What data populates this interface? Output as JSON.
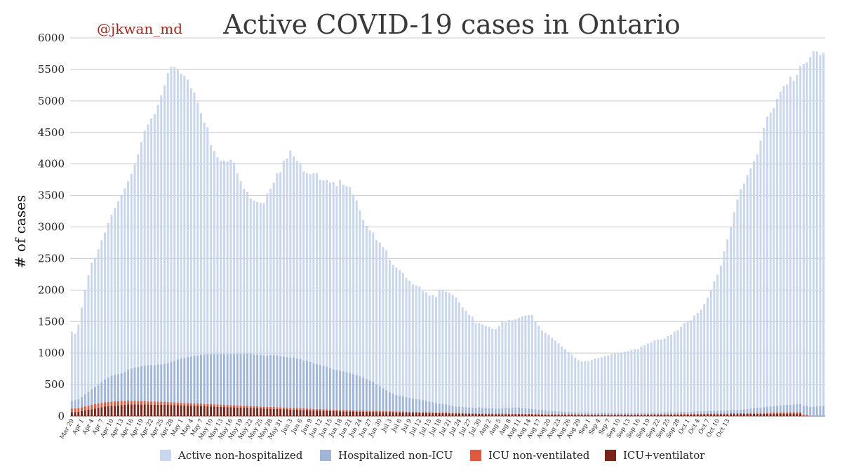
{
  "chart_data": {
    "type": "bar",
    "stacked": true,
    "title": "Active COVID-19 cases in Ontario",
    "handle": "@jkwan_md",
    "ylabel": "# of cases",
    "xlabel": "",
    "ylim": [
      0,
      6000
    ],
    "yticks": [
      0,
      500,
      1000,
      1500,
      2000,
      2500,
      3000,
      3500,
      4000,
      4500,
      5000,
      5500,
      6000
    ],
    "grid": true,
    "legend_position": "bottom",
    "start_date": "Mar 29",
    "tick_labels": [
      "Mar 29",
      "Apr 1",
      "Apr 4",
      "Apr 7",
      "Apr 10",
      "Apr 13",
      "Apr 16",
      "Apr 19",
      "Apr 22",
      "Apr 25",
      "Apr 28",
      "May 1",
      "May 4",
      "May 7",
      "May 10",
      "May 13",
      "May 16",
      "May 19",
      "May 22",
      "May 25",
      "May 28",
      "May 31",
      "Jun 3",
      "Jun 6",
      "Jun 9",
      "Jun 12",
      "Jun 15",
      "Jun 18",
      "Jun 21",
      "Jun 24",
      "Jun 27",
      "Jun 30",
      "Jul 3",
      "Jul 6",
      "Jul 9",
      "Jul 12",
      "Jul 15",
      "Jul 18",
      "Jul 21",
      "Jul 24",
      "Jul 27",
      "Jul 30",
      "Aug 2",
      "Aug 5",
      "Aug 8",
      "Aug 11",
      "Aug 14",
      "Aug 17",
      "Aug 20",
      "Aug 23",
      "Aug 26",
      "Aug 29",
      "Sep 1",
      "Sep 4",
      "Sep 7",
      "Sep 10",
      "Sep 13",
      "Sep 16",
      "Sep 19",
      "Sep 22",
      "Sep 25",
      "Sep 28",
      "Oct 1",
      "Oct 4",
      "Oct 7",
      "Oct 10",
      "Oct 13"
    ],
    "series": [
      {
        "name": "Active non-hospitalized",
        "color": "#c9d7ee",
        "values": [
          1100,
          1050,
          1180,
          1420,
          1650,
          1850,
          2000,
          2050,
          2150,
          2250,
          2330,
          2450,
          2550,
          2650,
          2740,
          2830,
          2910,
          2990,
          3090,
          3220,
          3370,
          3560,
          3730,
          3820,
          3910,
          3980,
          4120,
          4270,
          4420,
          4600,
          4680,
          4660,
          4600,
          4520,
          4480,
          4400,
          4260,
          4180,
          4010,
          3840,
          3680,
          3600,
          3320,
          3220,
          3120,
          3060,
          3060,
          3050,
          3080,
          3040,
          2860,
          2740,
          2620,
          2560,
          2460,
          2440,
          2420,
          2410,
          2420,
          2580,
          2640,
          2740,
          2890,
          2920,
          3100,
          3150,
          3280,
          3190,
          3130,
          3090,
          3000,
          2970,
          2980,
          3020,
          3030,
          2940,
          2940,
          2960,
          2940,
          2970,
          2920,
          3030,
          2960,
          2950,
          2950,
          2850,
          2770,
          2630,
          2500,
          2430,
          2380,
          2370,
          2290,
          2280,
          2240,
          2220,
          2100,
          2040,
          2020,
          1990,
          1960,
          1890,
          1860,
          1810,
          1810,
          1790,
          1730,
          1720,
          1680,
          1700,
          1680,
          1810,
          1810,
          1790,
          1780,
          1760,
          1730,
          1650,
          1580,
          1530,
          1470,
          1440,
          1340,
          1340,
          1320,
          1300,
          1290,
          1260,
          1260,
          1310,
          1370,
          1360,
          1400,
          1390,
          1400,
          1420,
          1450,
          1470,
          1480,
          1490,
          1390,
          1330,
          1260,
          1230,
          1200,
          1160,
          1120,
          1080,
          1030,
          990,
          950,
          910,
          860,
          830,
          810,
          810,
          810,
          840,
          860,
          870,
          880,
          900,
          910,
          930,
          940,
          950,
          960,
          970,
          980,
          1000,
          1010,
          1010,
          1050,
          1070,
          1100,
          1120,
          1150,
          1160,
          1160,
          1170,
          1210,
          1230,
          1280,
          1300,
          1350,
          1410,
          1430,
          1450,
          1520,
          1560,
          1610,
          1700,
          1800,
          1920,
          2050,
          2160,
          2300,
          2530,
          2710,
          2900,
          3140,
          3340,
          3500,
          3580,
          3710,
          3810,
          3920,
          4020,
          4240,
          4430,
          4600,
          4660,
          4730,
          4870,
          4980,
          5060,
          5080,
          5200,
          5130,
          5220,
          5360,
          5430,
          5450,
          5550,
          5640,
          5630,
          5570,
          5600
        ],
        "note": "values sum with other series to give total bar height"
      },
      {
        "name": "Hospitalized non-ICU",
        "color": "#9fb5db",
        "values": [
          120,
          130,
          140,
          160,
          190,
          220,
          250,
          270,
          300,
          330,
          360,
          390,
          410,
          420,
          430,
          440,
          460,
          490,
          510,
          530,
          540,
          550,
          560,
          570,
          580,
          580,
          590,
          590,
          600,
          620,
          640,
          660,
          680,
          700,
          710,
          730,
          740,
          750,
          760,
          770,
          780,
          790,
          790,
          800,
          800,
          810,
          810,
          810,
          810,
          810,
          820,
          820,
          820,
          830,
          830,
          820,
          820,
          820,
          810,
          810,
          820,
          820,
          820,
          810,
          810,
          800,
          800,
          800,
          790,
          780,
          760,
          760,
          740,
          720,
          710,
          700,
          690,
          680,
          660,
          640,
          630,
          620,
          610,
          600,
          590,
          570,
          560,
          540,
          520,
          500,
          480,
          460,
          420,
          390,
          360,
          330,
          300,
          280,
          260,
          250,
          240,
          230,
          220,
          210,
          200,
          200,
          190,
          180,
          170,
          160,
          150,
          140,
          140,
          130,
          120,
          110,
          100,
          100,
          95,
          95,
          90,
          90,
          90,
          95,
          90,
          90,
          85,
          85,
          80,
          80,
          85,
          90,
          90,
          95,
          100,
          100,
          95,
          90,
          85,
          80,
          75,
          70,
          65,
          60,
          55,
          50,
          50,
          45,
          45,
          40,
          40,
          35,
          35,
          30,
          30,
          30,
          30,
          25,
          25,
          25,
          25,
          25,
          25,
          25,
          25,
          25,
          25,
          25,
          25,
          25,
          25,
          25,
          25,
          25,
          25,
          25,
          25,
          25,
          25,
          30,
          30,
          30,
          30,
          30,
          35,
          35,
          35,
          35,
          40,
          40,
          40,
          40,
          40,
          40,
          45,
          45,
          45,
          45,
          50,
          50,
          50,
          50,
          55,
          60,
          65,
          70,
          75,
          80,
          80,
          90,
          95,
          100,
          100,
          105,
          110,
          115,
          120,
          120,
          125,
          130,
          130,
          135,
          140,
          145,
          150,
          155,
          160,
          165,
          170,
          170,
          175,
          180,
          185
        ],
        "note": "estimated"
      },
      {
        "name": "ICU non-ventilated",
        "color": "#e05a40",
        "values": [
          60,
          60,
          60,
          62,
          64,
          66,
          68,
          70,
          70,
          70,
          70,
          70,
          70,
          68,
          66,
          64,
          62,
          60,
          60,
          58,
          56,
          55,
          54,
          52,
          50,
          50,
          48,
          48,
          47,
          46,
          45,
          44,
          44,
          43,
          42,
          42,
          40,
          40,
          40,
          40,
          38,
          38,
          38,
          36,
          36,
          36,
          35,
          35,
          35,
          34,
          34,
          34,
          33,
          33,
          32,
          32,
          32,
          31,
          31,
          30,
          30,
          30,
          30,
          29,
          29,
          28,
          28,
          28,
          27,
          27,
          26,
          26,
          26,
          25,
          25,
          25,
          24,
          24,
          24,
          23,
          23,
          22,
          22,
          22,
          21,
          21,
          20,
          20,
          20,
          19,
          19,
          18,
          18,
          18,
          17,
          17,
          16,
          16,
          16,
          15,
          15,
          15,
          14,
          14,
          14,
          13,
          13,
          13,
          12,
          12,
          12,
          12,
          11,
          11,
          11,
          11,
          10,
          10,
          10,
          10,
          10,
          10,
          9,
          9,
          9,
          9,
          9,
          9,
          9,
          9,
          9,
          9,
          8,
          8,
          8,
          8,
          8,
          8,
          8,
          8,
          8,
          8,
          8,
          7,
          7,
          7,
          7,
          7,
          7,
          7,
          7,
          7,
          7,
          7,
          7,
          7,
          7,
          7,
          7,
          7,
          7,
          7,
          7,
          7,
          7,
          7,
          7,
          7,
          7,
          7,
          7,
          7,
          7,
          7,
          7,
          7,
          7,
          8,
          8,
          8,
          8,
          8,
          8,
          9,
          9,
          9,
          9,
          10,
          10,
          10,
          10,
          10,
          11,
          11,
          11,
          11,
          12,
          12,
          12,
          13,
          13,
          13,
          14,
          14,
          14,
          15,
          15,
          16,
          16,
          16,
          17,
          17,
          18,
          18,
          18,
          19,
          19,
          20,
          20,
          21,
          21,
          22,
          22
        ],
        "note": "estimated"
      },
      {
        "name": "ICU+ventilator",
        "color": "#7a2418",
        "values": [
          60,
          65,
          70,
          80,
          90,
          100,
          110,
          120,
          130,
          140,
          150,
          155,
          160,
          165,
          170,
          175,
          180,
          185,
          185,
          185,
          185,
          185,
          185,
          185,
          180,
          180,
          180,
          180,
          180,
          178,
          176,
          174,
          172,
          170,
          168,
          166,
          164,
          162,
          160,
          158,
          156,
          154,
          152,
          150,
          148,
          146,
          144,
          142,
          140,
          138,
          136,
          134,
          132,
          130,
          128,
          126,
          124,
          122,
          120,
          118,
          116,
          114,
          112,
          110,
          108,
          106,
          104,
          102,
          100,
          98,
          96,
          94,
          92,
          90,
          88,
          86,
          84,
          82,
          80,
          78,
          77,
          76,
          75,
          74,
          73,
          72,
          71,
          70,
          69,
          68,
          67,
          66,
          65,
          64,
          63,
          62,
          61,
          60,
          59,
          58,
          57,
          56,
          55,
          54,
          53,
          52,
          51,
          50,
          49,
          48,
          47,
          46,
          45,
          44,
          43,
          42,
          41,
          40,
          39,
          38,
          37,
          36,
          35,
          34,
          33,
          32,
          32,
          31,
          31,
          30,
          30,
          30,
          29,
          29,
          28,
          28,
          28,
          27,
          27,
          26,
          26,
          25,
          25,
          24,
          24,
          23,
          23,
          22,
          22,
          22,
          21,
          21,
          21,
          20,
          20,
          20,
          20,
          19,
          19,
          19,
          19,
          19,
          19,
          19,
          19,
          19,
          19,
          19,
          19,
          19,
          19,
          20,
          20,
          20,
          20,
          20,
          21,
          21,
          21,
          22,
          22,
          22,
          23,
          23,
          24,
          24,
          25,
          25,
          26,
          26,
          27,
          27,
          28,
          28,
          29,
          29,
          30,
          30,
          31,
          31,
          32,
          32,
          33,
          33,
          34,
          34,
          35,
          35,
          36,
          36,
          37,
          37,
          38,
          38,
          39,
          39,
          40,
          40,
          41,
          41,
          42
        ],
        "note": "estimated"
      }
    ]
  }
}
